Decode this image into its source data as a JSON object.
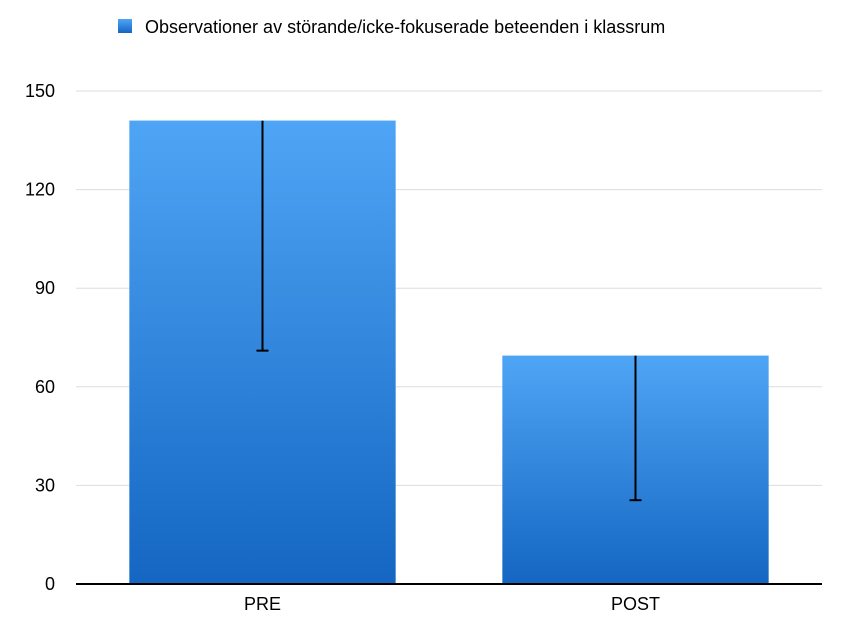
{
  "chart_data": {
    "type": "bar",
    "categories": [
      "PRE",
      "POST"
    ],
    "series": [
      {
        "name": "Observationer av störande/icke-fokuserade beteenden i klassrum",
        "values": [
          141,
          69.5
        ],
        "error_lower": [
          71,
          25.5
        ]
      }
    ],
    "title": "",
    "xlabel": "",
    "ylabel": "",
    "ylim": [
      0,
      150
    ],
    "yticks": [
      0,
      30,
      60,
      90,
      120,
      150
    ],
    "grid": true,
    "legend_position": "top-left",
    "colors": {
      "bar_top": "#4fa5f5",
      "bar_bottom": "#1466c2",
      "legend_swatch": "#2a7fe0",
      "grid": "#dddddd",
      "axis": "#000000",
      "error_bar": "#000000"
    }
  }
}
